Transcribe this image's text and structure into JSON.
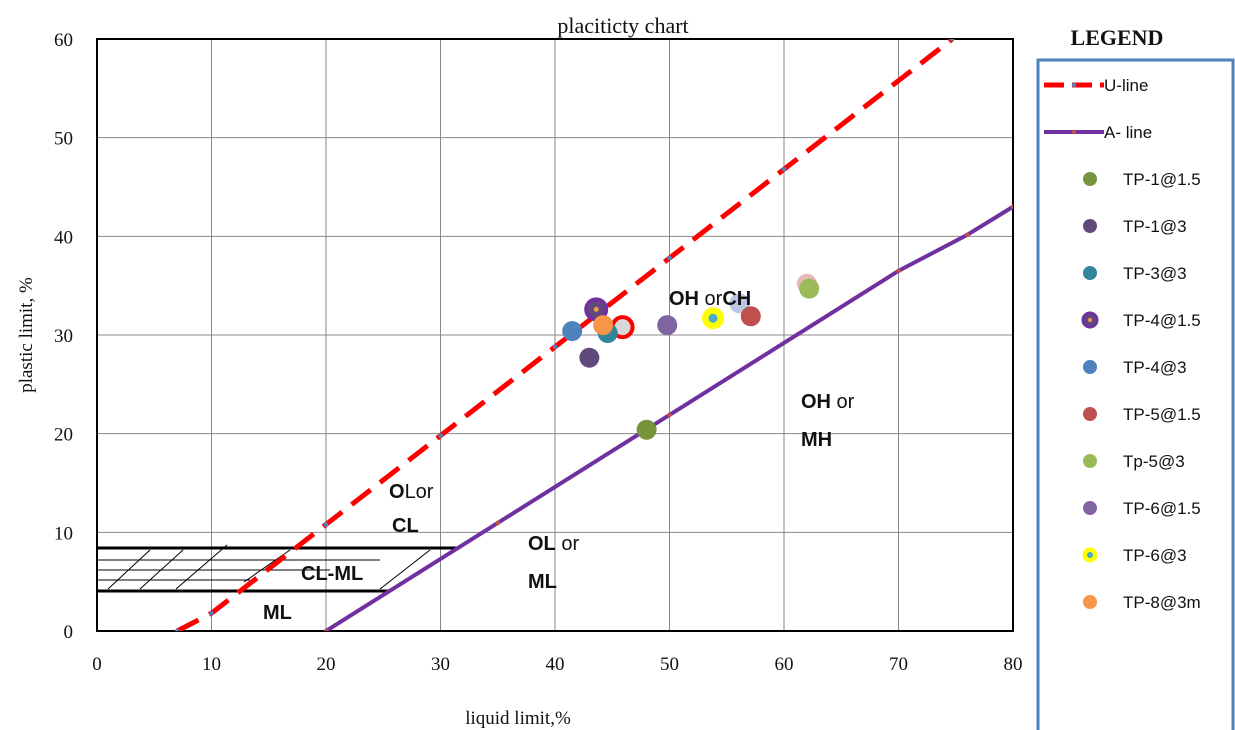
{
  "chart_data": {
    "type": "scatter",
    "title": "placiticty chart",
    "xlabel": "liquid limit,%",
    "ylabel": "plastic limit, %",
    "xlim": [
      0,
      80
    ],
    "ylim": [
      0,
      60
    ],
    "x_ticks": [
      0,
      10,
      20,
      30,
      40,
      50,
      60,
      70,
      80
    ],
    "y_ticks": [
      0,
      10,
      20,
      30,
      40,
      50,
      60
    ],
    "grid": true,
    "legend_title": "LEGEND",
    "legend_position": "right",
    "lines": [
      {
        "name": "U-line",
        "color": "#ff0000",
        "style": "dashed",
        "x": [
          7,
          10,
          20,
          30,
          40,
          50,
          60,
          74.7
        ],
        "y": [
          0,
          1.8,
          10.8,
          19.8,
          28.8,
          37.8,
          46.8,
          60
        ]
      },
      {
        "name": "A- line",
        "color": "#7030a0",
        "style": "solid",
        "x": [
          20,
          35,
          50,
          70,
          76,
          80
        ],
        "y": [
          0,
          10.95,
          21.9,
          36.5,
          40.15,
          43
        ]
      }
    ],
    "series": [
      {
        "name": "TP-1@1.5",
        "color": "#77933c",
        "x": [
          48
        ],
        "y": [
          20.4
        ]
      },
      {
        "name": "TP-1@3",
        "color": "#604a7b",
        "x": [
          43
        ],
        "y": [
          27.7
        ]
      },
      {
        "name": "TP-3@3",
        "color": "#31859c",
        "x": [
          44.6
        ],
        "y": [
          30.2
        ]
      },
      {
        "name": "TP-4@1.5",
        "color": "#7030a0",
        "x": [
          43.6
        ],
        "y": [
          32.6
        ]
      },
      {
        "name": "TP-4@3",
        "color": "#4f81bd",
        "x": [
          41.5
        ],
        "y": [
          30.4
        ]
      },
      {
        "name": "TP-5@1.5",
        "color": "#c0504d",
        "x": [
          57.1
        ],
        "y": [
          31.9
        ]
      },
      {
        "name": "Tp-5@3",
        "color": "#9bbb59",
        "x": [
          62.2
        ],
        "y": [
          34.7
        ]
      },
      {
        "name": "TP-6@1.5",
        "color": "#8064a2",
        "x": [
          49.8
        ],
        "y": [
          31
        ]
      },
      {
        "name": "TP-6@3",
        "color": "#ffff00",
        "x": [
          53.8
        ],
        "y": [
          31.7
        ]
      },
      {
        "name": "TP-8@3m",
        "color": "#f79646",
        "x": [
          44.2
        ],
        "y": [
          31
        ]
      }
    ],
    "extra_points": [
      {
        "x": 45.9,
        "y": 30.8,
        "color": "#d8d8d8",
        "ring": "#ff0000"
      },
      {
        "x": 56.1,
        "y": 33.2,
        "color": "#b9c7e2"
      },
      {
        "x": 62,
        "y": 35.2,
        "color": "#e6b9b8"
      }
    ],
    "annotations": {
      "ol_cl": {
        "bold": "O",
        "rest1": "Lor",
        "line2": "CL"
      },
      "ol_ml": {
        "bold": "OL",
        "rest1": " or",
        "line2": "ML"
      },
      "oh_ch": {
        "bold1": "OH",
        "mid": " or",
        "bold2": "CH"
      },
      "oh_mh": {
        "bold": "OH",
        "rest1": " or",
        "line2": "MH"
      },
      "cl_ml": "CL-ML",
      "ml": "ML"
    }
  }
}
